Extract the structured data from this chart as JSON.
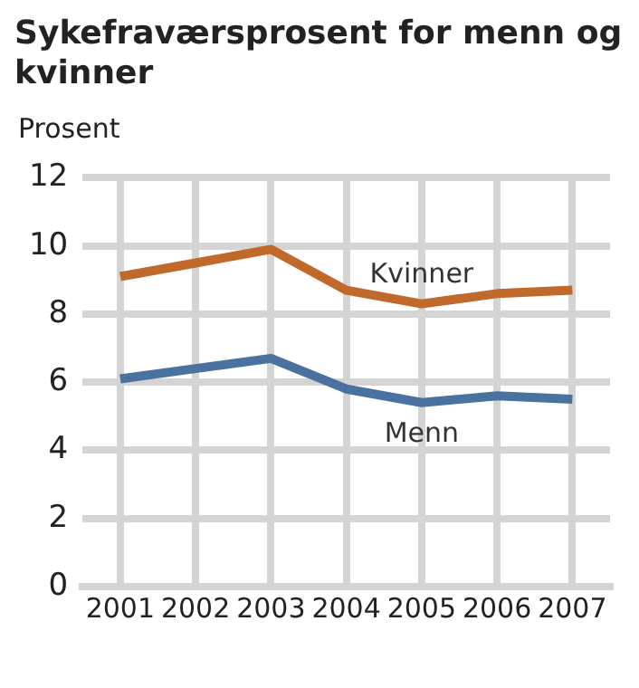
{
  "chart_data": {
    "type": "line",
    "title": "Sykefraværsprosent for menn og kvinner",
    "ylabel": "Prosent",
    "categories": [
      "2001",
      "2002",
      "2003",
      "2004",
      "2005",
      "2006",
      "2007"
    ],
    "series": [
      {
        "name": "Kvinner",
        "color": "#c0692b",
        "values": [
          9.1,
          9.5,
          9.9,
          8.7,
          8.3,
          8.6,
          8.7
        ]
      },
      {
        "name": "Menn",
        "color": "#4a72a0",
        "values": [
          6.1,
          6.4,
          6.7,
          5.8,
          5.4,
          5.6,
          5.5
        ]
      }
    ],
    "ylim": [
      0,
      12
    ],
    "yticks": [
      0,
      2,
      4,
      6,
      8,
      10,
      12
    ],
    "grid": true,
    "legend": false,
    "marker": "none",
    "line_style": "solid"
  }
}
